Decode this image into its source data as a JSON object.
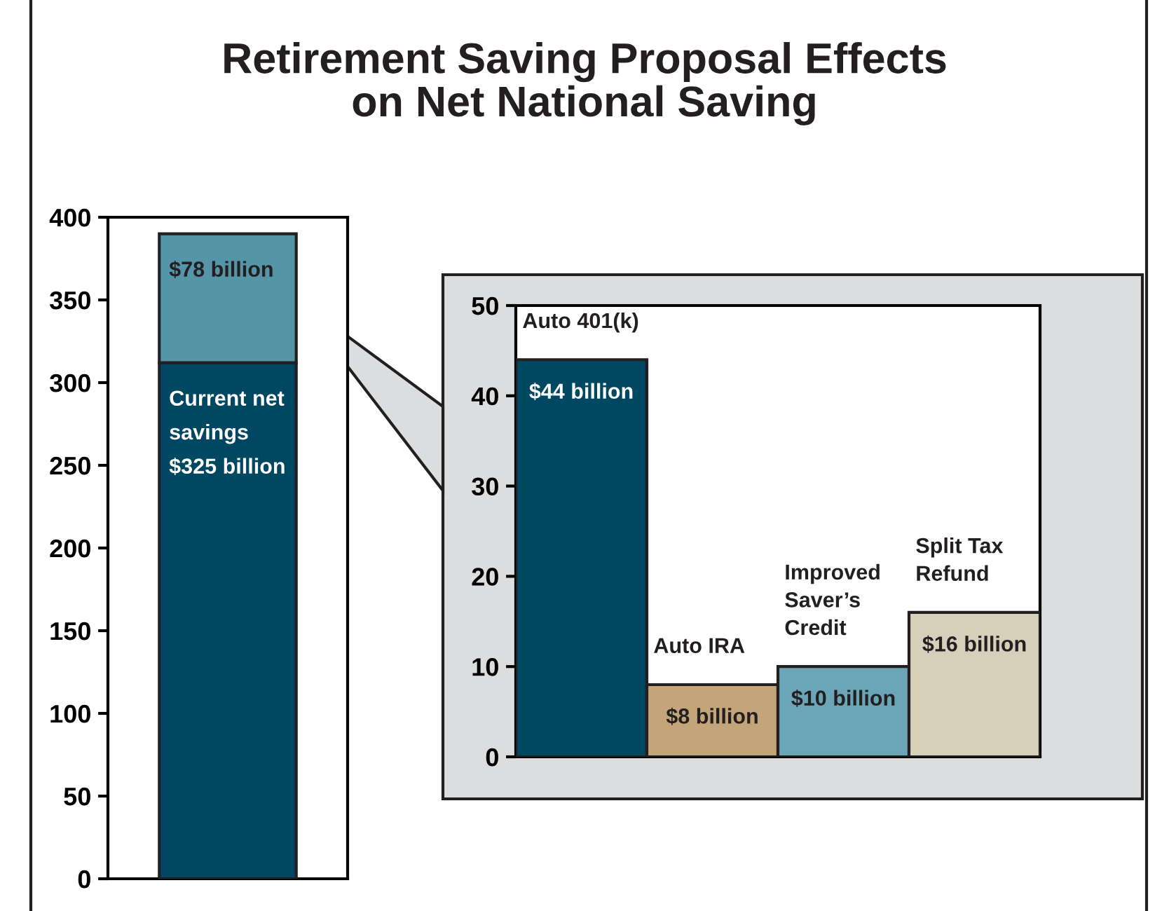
{
  "chart_data": [
    {
      "type": "bar",
      "title": "Retirement Saving Proposal Effects\non Net National Saving",
      "categories": [
        null
      ],
      "stacked": true,
      "ylim": [
        0,
        400
      ],
      "yticks": [
        0,
        50,
        100,
        150,
        200,
        250,
        300,
        350,
        400
      ],
      "tick_labels": "y",
      "grid": false,
      "legend": false,
      "series": [
        {
          "color": "#004761",
          "values": [
            312
          ],
          "value_labels": [
            "Current net\nsavings\n$325 billion"
          ]
        },
        {
          "color": "#5496a8",
          "values": [
            78
          ],
          "value_labels": [
            "$78 billion"
          ]
        }
      ]
    },
    {
      "type": "bar",
      "categories": [
        "Auto 401(k)",
        "Auto IRA",
        "Improved\nSaver’s\nCredit",
        "Split Tax\nRefund"
      ],
      "values": [
        44,
        8,
        10,
        16
      ],
      "colors": [
        "#004761",
        "#c4a57a",
        "#6ba6b8",
        "#d6cfb9"
      ],
      "value_labels": [
        "$44 billion",
        "$8 billion",
        "$10 billion",
        "$16 billion"
      ],
      "ylim": [
        0,
        50
      ],
      "yticks": [
        0,
        10,
        20,
        30,
        40,
        50
      ],
      "tick_labels": "y",
      "grid": false,
      "legend": false
    }
  ]
}
